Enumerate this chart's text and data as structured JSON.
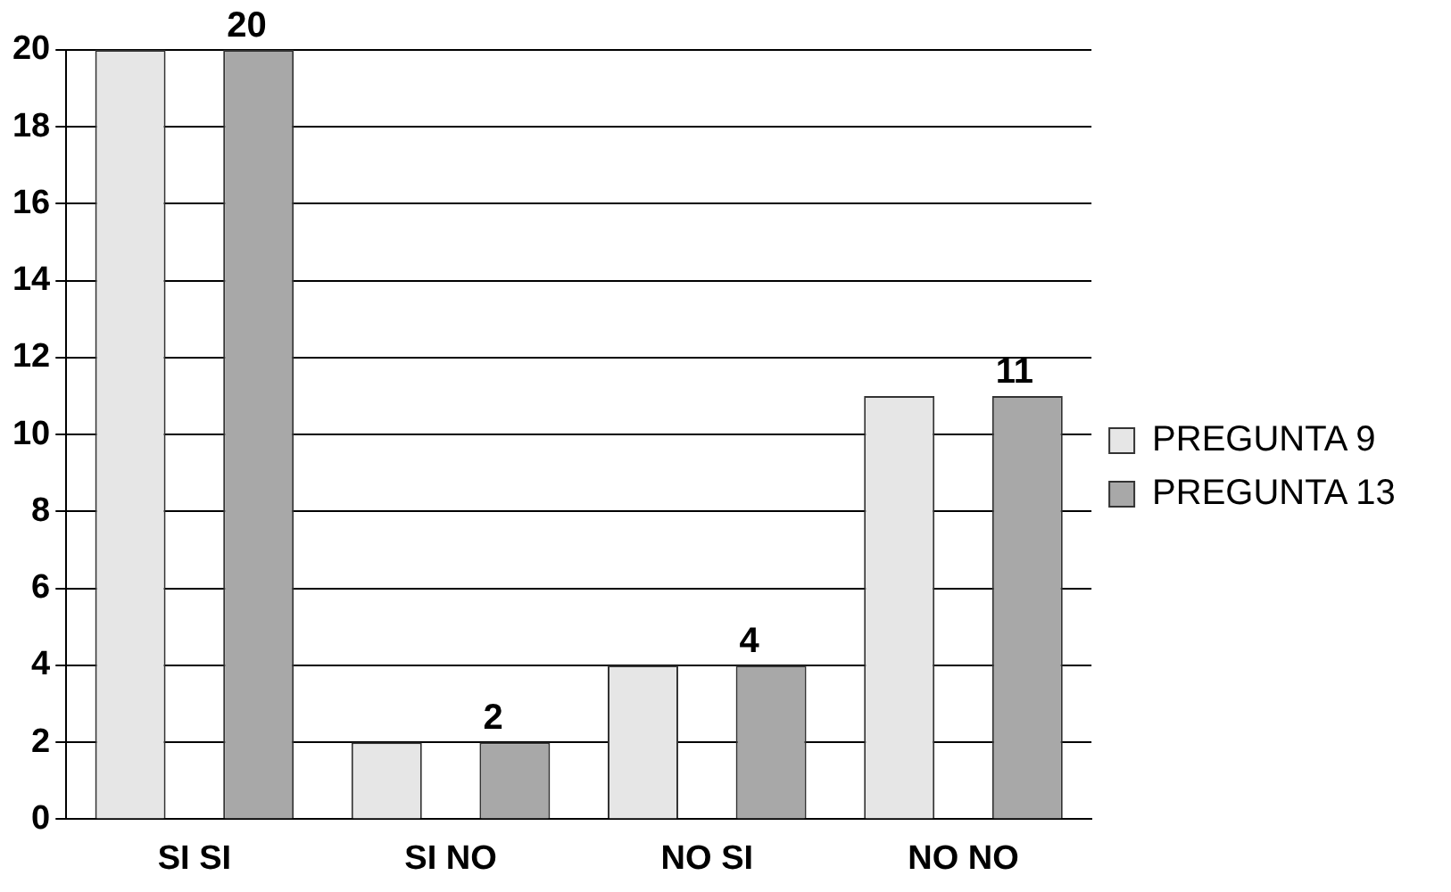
{
  "chart_data": {
    "type": "bar",
    "categories": [
      "SI SI",
      "SI NO",
      "NO SI",
      "NO NO"
    ],
    "series": [
      {
        "name": "PREGUNTA 9",
        "color": "#e6e6e6",
        "values": [
          20,
          2,
          4,
          11
        ]
      },
      {
        "name": "PREGUNTA 13",
        "color": "#a8a8a8",
        "values": [
          20,
          2,
          4,
          11
        ],
        "value_labels": [
          "20",
          "2",
          "4",
          "11"
        ]
      }
    ],
    "ylim": [
      0,
      20
    ],
    "yticks": [
      0,
      2,
      4,
      6,
      8,
      10,
      12,
      14,
      16,
      18,
      20
    ],
    "grid": "y",
    "legend": "right"
  }
}
